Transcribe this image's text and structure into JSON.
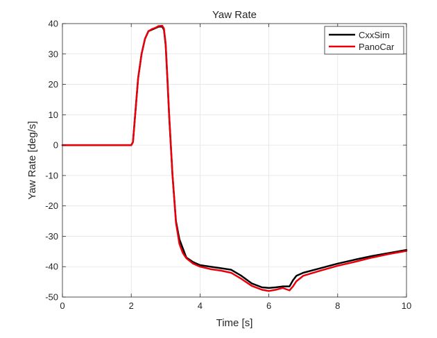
{
  "chart_data": {
    "type": "line",
    "title": "Yaw Rate",
    "xlabel": "Time [s]",
    "ylabel": "Yaw Rate [deg/s]",
    "xlim": [
      0,
      10
    ],
    "ylim": [
      -50,
      40
    ],
    "xticks": [
      0,
      2,
      4,
      6,
      8,
      10
    ],
    "yticks": [
      40,
      30,
      20,
      10,
      0,
      -10,
      -20,
      -30,
      -40,
      -50
    ],
    "grid": true,
    "legend_position": "top-right",
    "series": [
      {
        "name": "CxxSim",
        "color": "#000000",
        "x": [
          0,
          1.9,
          2.0,
          2.05,
          2.1,
          2.2,
          2.3,
          2.4,
          2.5,
          2.6,
          2.7,
          2.8,
          2.9,
          2.95,
          3.0,
          3.05,
          3.1,
          3.2,
          3.3,
          3.4,
          3.5,
          3.6,
          3.8,
          4.0,
          4.3,
          4.6,
          4.9,
          5.2,
          5.5,
          5.8,
          6.0,
          6.2,
          6.4,
          6.6,
          6.7,
          6.8,
          7.0,
          7.5,
          8.0,
          8.5,
          9.0,
          9.5,
          10.0
        ],
        "values": [
          0,
          0,
          0,
          1,
          8,
          22,
          30,
          35,
          37.5,
          38,
          38.5,
          39,
          39,
          38,
          33,
          22,
          10,
          -10,
          -25,
          -31,
          -34,
          -37,
          -38.5,
          -39.5,
          -40,
          -40.5,
          -41,
          -43,
          -45.5,
          -46.8,
          -47,
          -46.8,
          -46.5,
          -46.5,
          -44.5,
          -43,
          -42,
          -40.5,
          -39,
          -37.7,
          -36.5,
          -35.5,
          -34.5
        ]
      },
      {
        "name": "PanoCar",
        "color": "#e8000b",
        "x": [
          0,
          1.9,
          2.0,
          2.05,
          2.1,
          2.2,
          2.3,
          2.4,
          2.5,
          2.6,
          2.7,
          2.8,
          2.9,
          2.95,
          3.0,
          3.05,
          3.1,
          3.2,
          3.3,
          3.4,
          3.5,
          3.6,
          3.8,
          4.0,
          4.3,
          4.6,
          4.9,
          5.2,
          5.5,
          5.8,
          6.0,
          6.2,
          6.4,
          6.6,
          6.7,
          6.8,
          7.0,
          7.5,
          8.0,
          8.5,
          9.0,
          9.5,
          10.0
        ],
        "values": [
          0,
          0,
          0,
          1,
          8,
          22,
          30,
          35,
          37.5,
          38.2,
          38.6,
          39.2,
          39.3,
          38.4,
          33.5,
          22.5,
          10.5,
          -10,
          -25.5,
          -32.5,
          -35.5,
          -37.2,
          -39,
          -40,
          -40.8,
          -41.3,
          -42,
          -44,
          -46.3,
          -47.6,
          -48,
          -47.6,
          -47,
          -47.8,
          -46.5,
          -44.8,
          -43,
          -41.3,
          -39.7,
          -38.4,
          -37,
          -35.8,
          -34.8
        ]
      }
    ]
  }
}
